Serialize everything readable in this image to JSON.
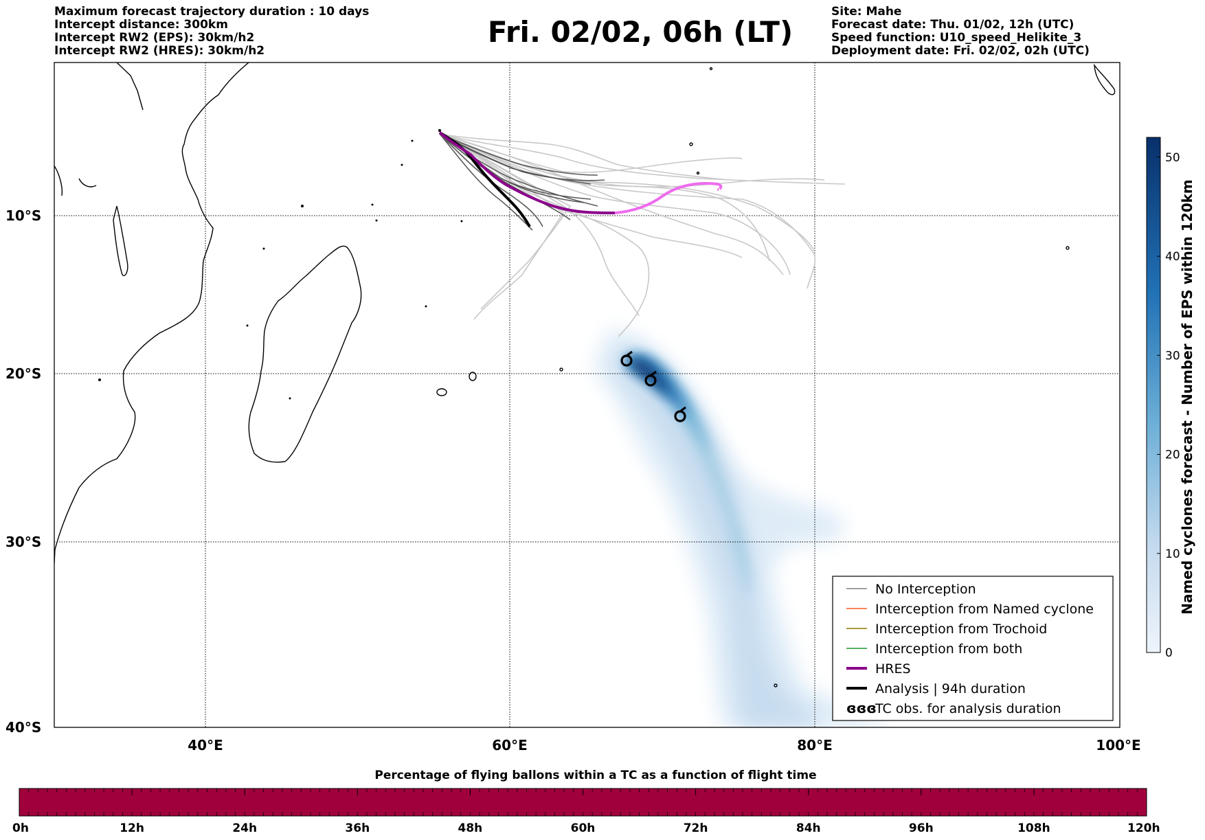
{
  "header_left": [
    "Maximum forecast trajectory duration : 10 days",
    "Intercept distance: 300km",
    "Intercept RW2 (EPS):  30km/h2",
    "Intercept RW2 (HRES): 30km/h2"
  ],
  "title": "Fri. 02/02, 06h (LT)",
  "header_right": [
    "Site: Mahe",
    "Forecast date: Thu. 01/02, 12h (UTC)",
    "Speed function: U10_speed_Helikite_3",
    "Deployment date: Fri. 02/02, 02h (UTC)"
  ],
  "map": {
    "lat_labels": [
      "10°S",
      "20°S",
      "30°S",
      "40°S"
    ],
    "lon_labels": [
      "40°E",
      "60°E",
      "80°E",
      "100°E"
    ],
    "land_color": "#ffffff",
    "coast_color": "#000000"
  },
  "legend": {
    "items": [
      {
        "label": "No Interception",
        "color": "#808080",
        "style": "thin"
      },
      {
        "label": "Interception from Named cyclone",
        "color": "#ff5a1e",
        "style": "thin"
      },
      {
        "label": "Interception from Trochoid",
        "color": "#8c7800",
        "style": "thin"
      },
      {
        "label": "Interception from both",
        "color": "#1e9628",
        "style": "thin"
      },
      {
        "label": "HRES",
        "color": "#8b008b",
        "style": "thick"
      },
      {
        "label": "Analysis | 94h duration",
        "color": "#000000",
        "style": "thick"
      },
      {
        "label": "TC obs. for analysis duration",
        "color": "#000000",
        "style": "symbol",
        "symbol": "ɞɞɞ"
      }
    ]
  },
  "colorbar": {
    "label": "Named cyclones forecast - Number of EPS within 120km",
    "ticks": [
      "0",
      "10",
      "20",
      "30",
      "40",
      "50"
    ],
    "min": 0,
    "max": 52,
    "color_low": "#deebf7",
    "color_high": "#08306b"
  },
  "time_bar": {
    "title": "Percentage of flying ballons within a TC as a function of flight time",
    "ticks": [
      "0h",
      "12h",
      "24h",
      "36h",
      "48h",
      "60h",
      "72h",
      "84h",
      "96h",
      "108h",
      "120h"
    ],
    "fill_color": "#a0003c",
    "percentage": 100
  }
}
